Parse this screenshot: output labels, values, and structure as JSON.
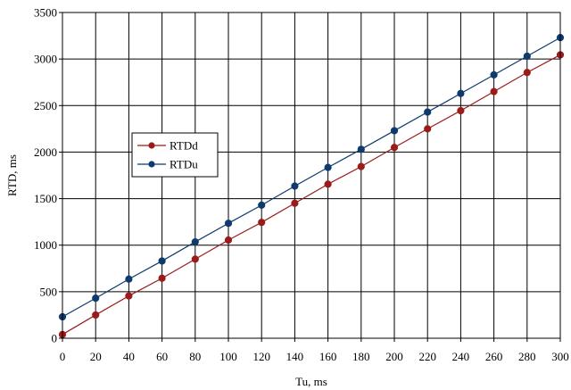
{
  "chart_data": {
    "type": "line",
    "title": "",
    "xlabel": "Tu, ms",
    "ylabel": "RTD, ms",
    "xlim": [
      0,
      300
    ],
    "ylim": [
      0,
      3500
    ],
    "xticks": [
      0,
      20,
      40,
      60,
      80,
      100,
      120,
      140,
      160,
      180,
      200,
      220,
      240,
      260,
      280,
      300
    ],
    "yticks": [
      0,
      500,
      1000,
      1500,
      2000,
      2500,
      3000,
      3500
    ],
    "grid": true,
    "legend_position": "upper-left inside plot",
    "x": [
      0,
      20,
      40,
      60,
      80,
      100,
      120,
      140,
      160,
      180,
      200,
      220,
      240,
      260,
      280,
      300
    ],
    "series": [
      {
        "name": "RTDd",
        "color": "#9b1b1b",
        "values": [
          40,
          250,
          455,
          645,
          850,
          1055,
          1245,
          1450,
          1655,
          1845,
          2050,
          2250,
          2445,
          2650,
          2855,
          3045
        ]
      },
      {
        "name": "RTDu",
        "color": "#0e3a6e",
        "values": [
          230,
          430,
          635,
          830,
          1035,
          1235,
          1430,
          1635,
          1835,
          2030,
          2230,
          2430,
          2630,
          2830,
          3030,
          3230
        ]
      }
    ]
  }
}
